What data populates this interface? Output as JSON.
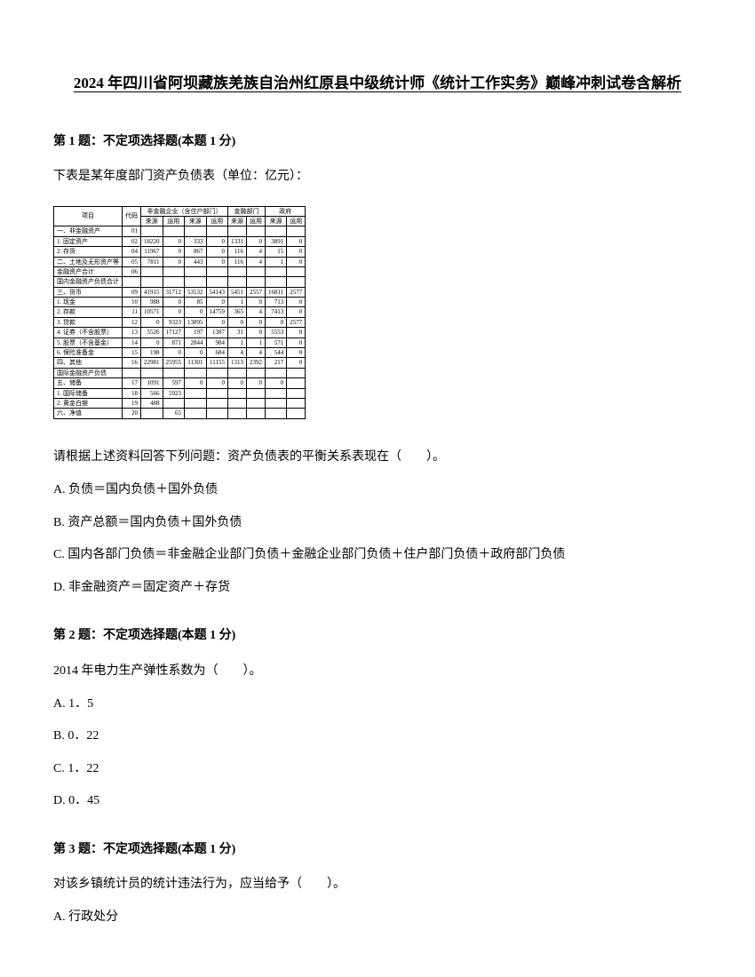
{
  "title": "2024 年四川省阿坝藏族羌族自治州红原县中级统计师《统计工作实务》巅峰冲刺试卷含解析",
  "q1": {
    "header": "第 1 题：不定项选择题(本题 1 分)",
    "text": "下表是某年度部门资产负债表（单位：亿元）：",
    "prompt": "请根据上述资料回答下列问题：资产负债表的平衡关系表现在（　　）。",
    "optA": "A. 负债＝国内负债＋国外负债",
    "optB": "B. 资产总额＝国内负债＋国外负债",
    "optC": "C. 国内各部门负债＝非金融企业部门负债＋金融企业部门负债＋住户部门负债＋政府部门负债",
    "optD": "D. 非金融资产＝固定资产＋存货"
  },
  "q2": {
    "header": "第 2 题：不定项选择题(本题 1 分)",
    "text": "2014 年电力生产弹性系数为（　　）。",
    "optA": "A. 1．5",
    "optB": "B. 0．22",
    "optC": "C. 1．22",
    "optD": "D. 0．45"
  },
  "q3": {
    "header": "第 3 题：不定项选择题(本题 1 分)",
    "text": "对该乡镇统计员的统计违法行为，应当给予（　　）。",
    "optA": "A. 行政处分"
  },
  "table": {
    "header_group1": "非金融企业（含住户部门）",
    "header_group2": "金融部门",
    "header_group3": "政府",
    "sub_headers": [
      "来源",
      "运用",
      "来源",
      "运用",
      "来源",
      "运用",
      "来源",
      "运用"
    ],
    "rows": [
      {
        "label": "一、非金融资产",
        "code": "01",
        "cells": [
          "",
          "",
          "",
          "",
          "",
          "",
          "",
          ""
        ]
      },
      {
        "label": "1. 固定资产",
        "code": "02",
        "cells": [
          "18220",
          "0",
          "333",
          "0",
          "1331",
          "0",
          "3891",
          "0"
        ]
      },
      {
        "label": "2. 存货",
        "code": "04",
        "cells": [
          "11967",
          "0",
          "867",
          "0",
          "116",
          "4",
          "15",
          "0"
        ]
      },
      {
        "label": "二、土地及无形资产等",
        "code": "05",
        "cells": [
          "7811",
          "0",
          "443",
          "0",
          "116",
          "4",
          "1",
          "0"
        ]
      },
      {
        "label": "金融资产合计",
        "code": "06",
        "cells": [
          "",
          "",
          "",
          "",
          "",
          "",
          "",
          ""
        ]
      },
      {
        "label": "国内金融资产负债合计",
        "code": "",
        "cells": [
          "",
          "",
          "",
          "",
          "",
          "",
          "",
          ""
        ]
      },
      {
        "label": "三、货币",
        "code": "09",
        "cells": [
          "41915",
          "31712",
          "53532",
          "54143",
          "5451",
          "2557",
          "16811",
          "2577"
        ]
      },
      {
        "label": "1. 现金",
        "code": "10",
        "cells": [
          "988",
          "0",
          "85",
          "0",
          "1",
          "0",
          "713",
          "0"
        ]
      },
      {
        "label": "2. 存款",
        "code": "11",
        "cells": [
          "10571",
          "0",
          "0",
          "14759",
          "365",
          "4",
          "7413",
          "0"
        ]
      },
      {
        "label": "3. 贷款",
        "code": "12",
        "cells": [
          "0",
          "9323",
          "13895",
          "0",
          "0",
          "0",
          "0",
          "2577"
        ]
      },
      {
        "label": "4. 证券（不含股票）",
        "code": "13",
        "cells": [
          "5526",
          "17127",
          "197",
          "1387",
          "31",
          "0",
          "5553",
          "0"
        ]
      },
      {
        "label": "5. 股票（不含基金）",
        "code": "14",
        "cells": [
          "0",
          "871",
          "2844",
          "984",
          "1",
          "1",
          "571",
          "0"
        ]
      },
      {
        "label": "6. 保险准备金",
        "code": "15",
        "cells": [
          "198",
          "0",
          "0",
          "684",
          "4",
          "4",
          "544",
          "0"
        ]
      },
      {
        "label": "四、其他",
        "code": "16",
        "cells": [
          "22981",
          "25955",
          "11301",
          "11155",
          "1313",
          "2392",
          "217",
          "0"
        ]
      },
      {
        "label": "国际金融资产负债",
        "code": "",
        "cells": [
          "",
          "",
          "",
          "",
          "",
          "",
          "",
          ""
        ]
      },
      {
        "label": "五、储备",
        "code": "17",
        "cells": [
          "1091",
          "597",
          "0",
          "0",
          "0",
          "0",
          "0",
          ""
        ]
      },
      {
        "label": "1. 国际储备",
        "code": "18",
        "cells": [
          "566",
          "5923",
          "",
          "",
          "",
          "",
          "",
          ""
        ]
      },
      {
        "label": "2. 黄金白银",
        "code": "19",
        "cells": [
          "488",
          "",
          "",
          "",
          "",
          "",
          "",
          ""
        ]
      },
      {
        "label": "六、净值",
        "code": "20",
        "cells": [
          "",
          "65",
          "",
          "",
          "",
          "",
          "",
          ""
        ]
      }
    ]
  }
}
